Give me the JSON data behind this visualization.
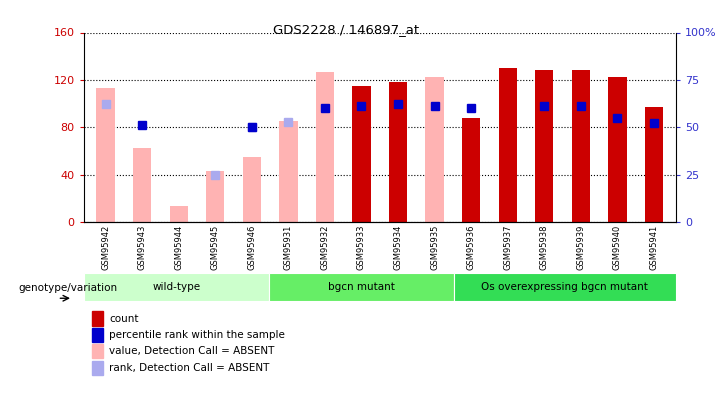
{
  "title": "GDS2228 / 146897_at",
  "samples": [
    "GSM95942",
    "GSM95943",
    "GSM95944",
    "GSM95945",
    "GSM95946",
    "GSM95931",
    "GSM95932",
    "GSM95933",
    "GSM95934",
    "GSM95935",
    "GSM95936",
    "GSM95937",
    "GSM95938",
    "GSM95939",
    "GSM95940",
    "GSM95941"
  ],
  "groups": [
    {
      "name": "wild-type",
      "color": "#ccffcc",
      "count": 5
    },
    {
      "name": "bgcn mutant",
      "color": "#66ee66",
      "count": 5
    },
    {
      "name": "Os overexpressing bgcn mutant",
      "color": "#33dd55",
      "count": 6
    }
  ],
  "absent_value": [
    113,
    62,
    13,
    43,
    55,
    85,
    127,
    0,
    0,
    122,
    0,
    0,
    0,
    0,
    0,
    0
  ],
  "absent_rank_pct": [
    62,
    0,
    0,
    25,
    50,
    53,
    0,
    0,
    0,
    0,
    0,
    0,
    0,
    0,
    0,
    0
  ],
  "present_value": [
    0,
    0,
    0,
    0,
    0,
    0,
    0,
    115,
    118,
    0,
    88,
    130,
    128,
    128,
    122,
    97
  ],
  "present_rank_pct": [
    0,
    51,
    0,
    0,
    50,
    0,
    60,
    61,
    62,
    61,
    60,
    0,
    61,
    61,
    55,
    52
  ],
  "ylim_left": [
    0,
    160
  ],
  "ylim_right": [
    0,
    100
  ],
  "yticks_left": [
    0,
    40,
    80,
    120,
    160
  ],
  "ytick_labels_left": [
    "0",
    "40",
    "80",
    "120",
    "160"
  ],
  "yticks_right": [
    0,
    25,
    50,
    75,
    100
  ],
  "ytick_labels_right": [
    "0",
    "25",
    "50",
    "75",
    "100%"
  ],
  "absent_value_color": "#ffb3b3",
  "absent_rank_color": "#aaaaee",
  "present_value_color": "#cc0000",
  "present_rank_color": "#0000cc",
  "bg_color": "#ffffff",
  "label_color_left": "#cc0000",
  "label_color_right": "#3333cc",
  "legend_items": [
    {
      "label": "count",
      "color": "#cc0000"
    },
    {
      "label": "percentile rank within the sample",
      "color": "#0000cc"
    },
    {
      "label": "value, Detection Call = ABSENT",
      "color": "#ffb3b3"
    },
    {
      "label": "rank, Detection Call = ABSENT",
      "color": "#aaaaee"
    }
  ]
}
